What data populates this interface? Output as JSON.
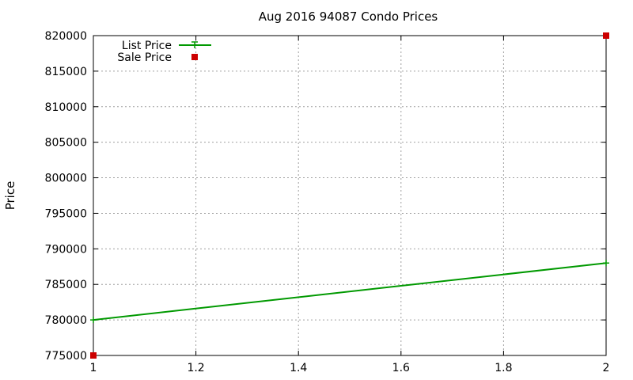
{
  "chart_data": {
    "type": "line",
    "title": "Aug 2016 94087 Condo Prices",
    "xlabel": "",
    "ylabel": "Price",
    "xlim": [
      1,
      2
    ],
    "ylim": [
      775000,
      820000
    ],
    "x_ticks": [
      1,
      1.2,
      1.4,
      1.6,
      1.8,
      2
    ],
    "x_tick_labels": [
      "1",
      "1.2",
      "1.4",
      "1.6",
      "1.8",
      "2"
    ],
    "y_ticks": [
      775000,
      780000,
      785000,
      790000,
      795000,
      800000,
      805000,
      810000,
      815000,
      820000
    ],
    "y_tick_labels": [
      "775000",
      "780000",
      "785000",
      "790000",
      "795000",
      "800000",
      "805000",
      "810000",
      "815000",
      "820000"
    ],
    "grid": true,
    "legend_position": "top-left",
    "series": [
      {
        "name": "List Price",
        "style": "line",
        "color": "#009900",
        "points": [
          {
            "x": 1,
            "y": 780000
          },
          {
            "x": 2,
            "y": 788000
          }
        ]
      },
      {
        "name": "Sale Price",
        "style": "points",
        "color": "#cc0000",
        "points": [
          {
            "x": 1,
            "y": 775000
          },
          {
            "x": 2,
            "y": 820000
          }
        ]
      }
    ]
  }
}
